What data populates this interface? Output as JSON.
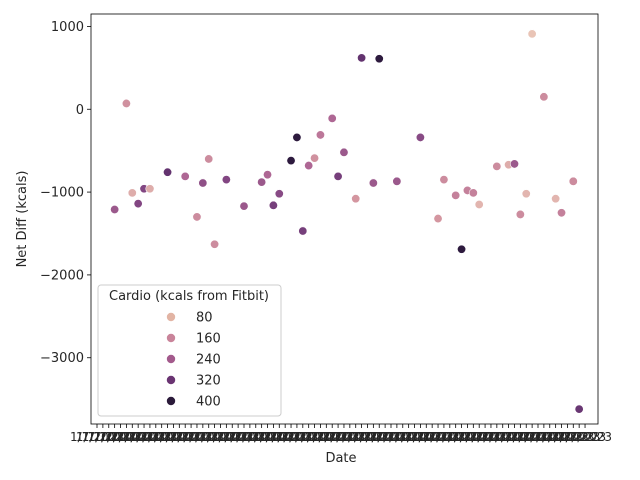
{
  "chart_data": {
    "type": "scatter",
    "xlabel": "Date",
    "ylabel": "Net Diff (kcals)",
    "ylim": [
      -3800,
      1150
    ],
    "yticks": [
      1000,
      0,
      -1000,
      -2000,
      -3000
    ],
    "ytick_labels": [
      "1000",
      "0",
      "−1000",
      "−2000",
      "−3000"
    ],
    "grid": false,
    "x_tick_count": 84,
    "x_tick_label_text": "1/7/2023",
    "legend": {
      "title": "Cardio (kcals from Fitbit)",
      "placement": "lower-left",
      "entries": [
        {
          "label": "80",
          "color": "#e2b4a4"
        },
        {
          "label": "160",
          "color": "#c9849a"
        },
        {
          "label": "240",
          "color": "#a35a8c"
        },
        {
          "label": "320",
          "color": "#6a3472"
        },
        {
          "label": "400",
          "color": "#2b1a3a"
        }
      ]
    },
    "points": [
      {
        "x": 3,
        "y": -1210,
        "cardio": 240
      },
      {
        "x": 5,
        "y": 70,
        "cardio": 130
      },
      {
        "x": 6,
        "y": -1010,
        "cardio": 90
      },
      {
        "x": 7,
        "y": -1140,
        "cardio": 280
      },
      {
        "x": 8,
        "y": -960,
        "cardio": 280
      },
      {
        "x": 9,
        "y": -960,
        "cardio": 90
      },
      {
        "x": 12,
        "y": -760,
        "cardio": 330
      },
      {
        "x": 15,
        "y": -810,
        "cardio": 210
      },
      {
        "x": 17,
        "y": -1300,
        "cardio": 140
      },
      {
        "x": 18,
        "y": -890,
        "cardio": 260
      },
      {
        "x": 19,
        "y": -600,
        "cardio": 140
      },
      {
        "x": 20,
        "y": -1630,
        "cardio": 140
      },
      {
        "x": 22,
        "y": -850,
        "cardio": 280
      },
      {
        "x": 25,
        "y": -1170,
        "cardio": 240
      },
      {
        "x": 28,
        "y": -880,
        "cardio": 240
      },
      {
        "x": 29,
        "y": -790,
        "cardio": 210
      },
      {
        "x": 30,
        "y": -1160,
        "cardio": 300
      },
      {
        "x": 31,
        "y": -1020,
        "cardio": 270
      },
      {
        "x": 33,
        "y": -620,
        "cardio": 430
      },
      {
        "x": 34,
        "y": -340,
        "cardio": 430
      },
      {
        "x": 35,
        "y": -1470,
        "cardio": 300
      },
      {
        "x": 36,
        "y": -680,
        "cardio": 210
      },
      {
        "x": 37,
        "y": -590,
        "cardio": 130
      },
      {
        "x": 38,
        "y": -310,
        "cardio": 180
      },
      {
        "x": 40,
        "y": -110,
        "cardio": 210
      },
      {
        "x": 41,
        "y": -810,
        "cardio": 300
      },
      {
        "x": 42,
        "y": -520,
        "cardio": 240
      },
      {
        "x": 44,
        "y": -1080,
        "cardio": 120
      },
      {
        "x": 45,
        "y": 620,
        "cardio": 330
      },
      {
        "x": 47,
        "y": -890,
        "cardio": 240
      },
      {
        "x": 48,
        "y": 610,
        "cardio": 430
      },
      {
        "x": 51,
        "y": -870,
        "cardio": 240
      },
      {
        "x": 55,
        "y": -340,
        "cardio": 270
      },
      {
        "x": 58,
        "y": -1320,
        "cardio": 120
      },
      {
        "x": 59,
        "y": -850,
        "cardio": 140
      },
      {
        "x": 61,
        "y": -1040,
        "cardio": 160
      },
      {
        "x": 62,
        "y": -1690,
        "cardio": 430
      },
      {
        "x": 63,
        "y": -980,
        "cardio": 160
      },
      {
        "x": 64,
        "y": -1010,
        "cardio": 160
      },
      {
        "x": 65,
        "y": -1150,
        "cardio": 80
      },
      {
        "x": 68,
        "y": -690,
        "cardio": 140
      },
      {
        "x": 70,
        "y": -670,
        "cardio": 90
      },
      {
        "x": 71,
        "y": -660,
        "cardio": 240
      },
      {
        "x": 72,
        "y": -1270,
        "cardio": 140
      },
      {
        "x": 73,
        "y": -1020,
        "cardio": 80
      },
      {
        "x": 74,
        "y": 910,
        "cardio": 60
      },
      {
        "x": 76,
        "y": 150,
        "cardio": 140
      },
      {
        "x": 78,
        "y": -1080,
        "cardio": 80
      },
      {
        "x": 79,
        "y": -1250,
        "cardio": 160
      },
      {
        "x": 81,
        "y": -870,
        "cardio": 140
      },
      {
        "x": 82,
        "y": -3620,
        "cardio": 320
      }
    ]
  }
}
